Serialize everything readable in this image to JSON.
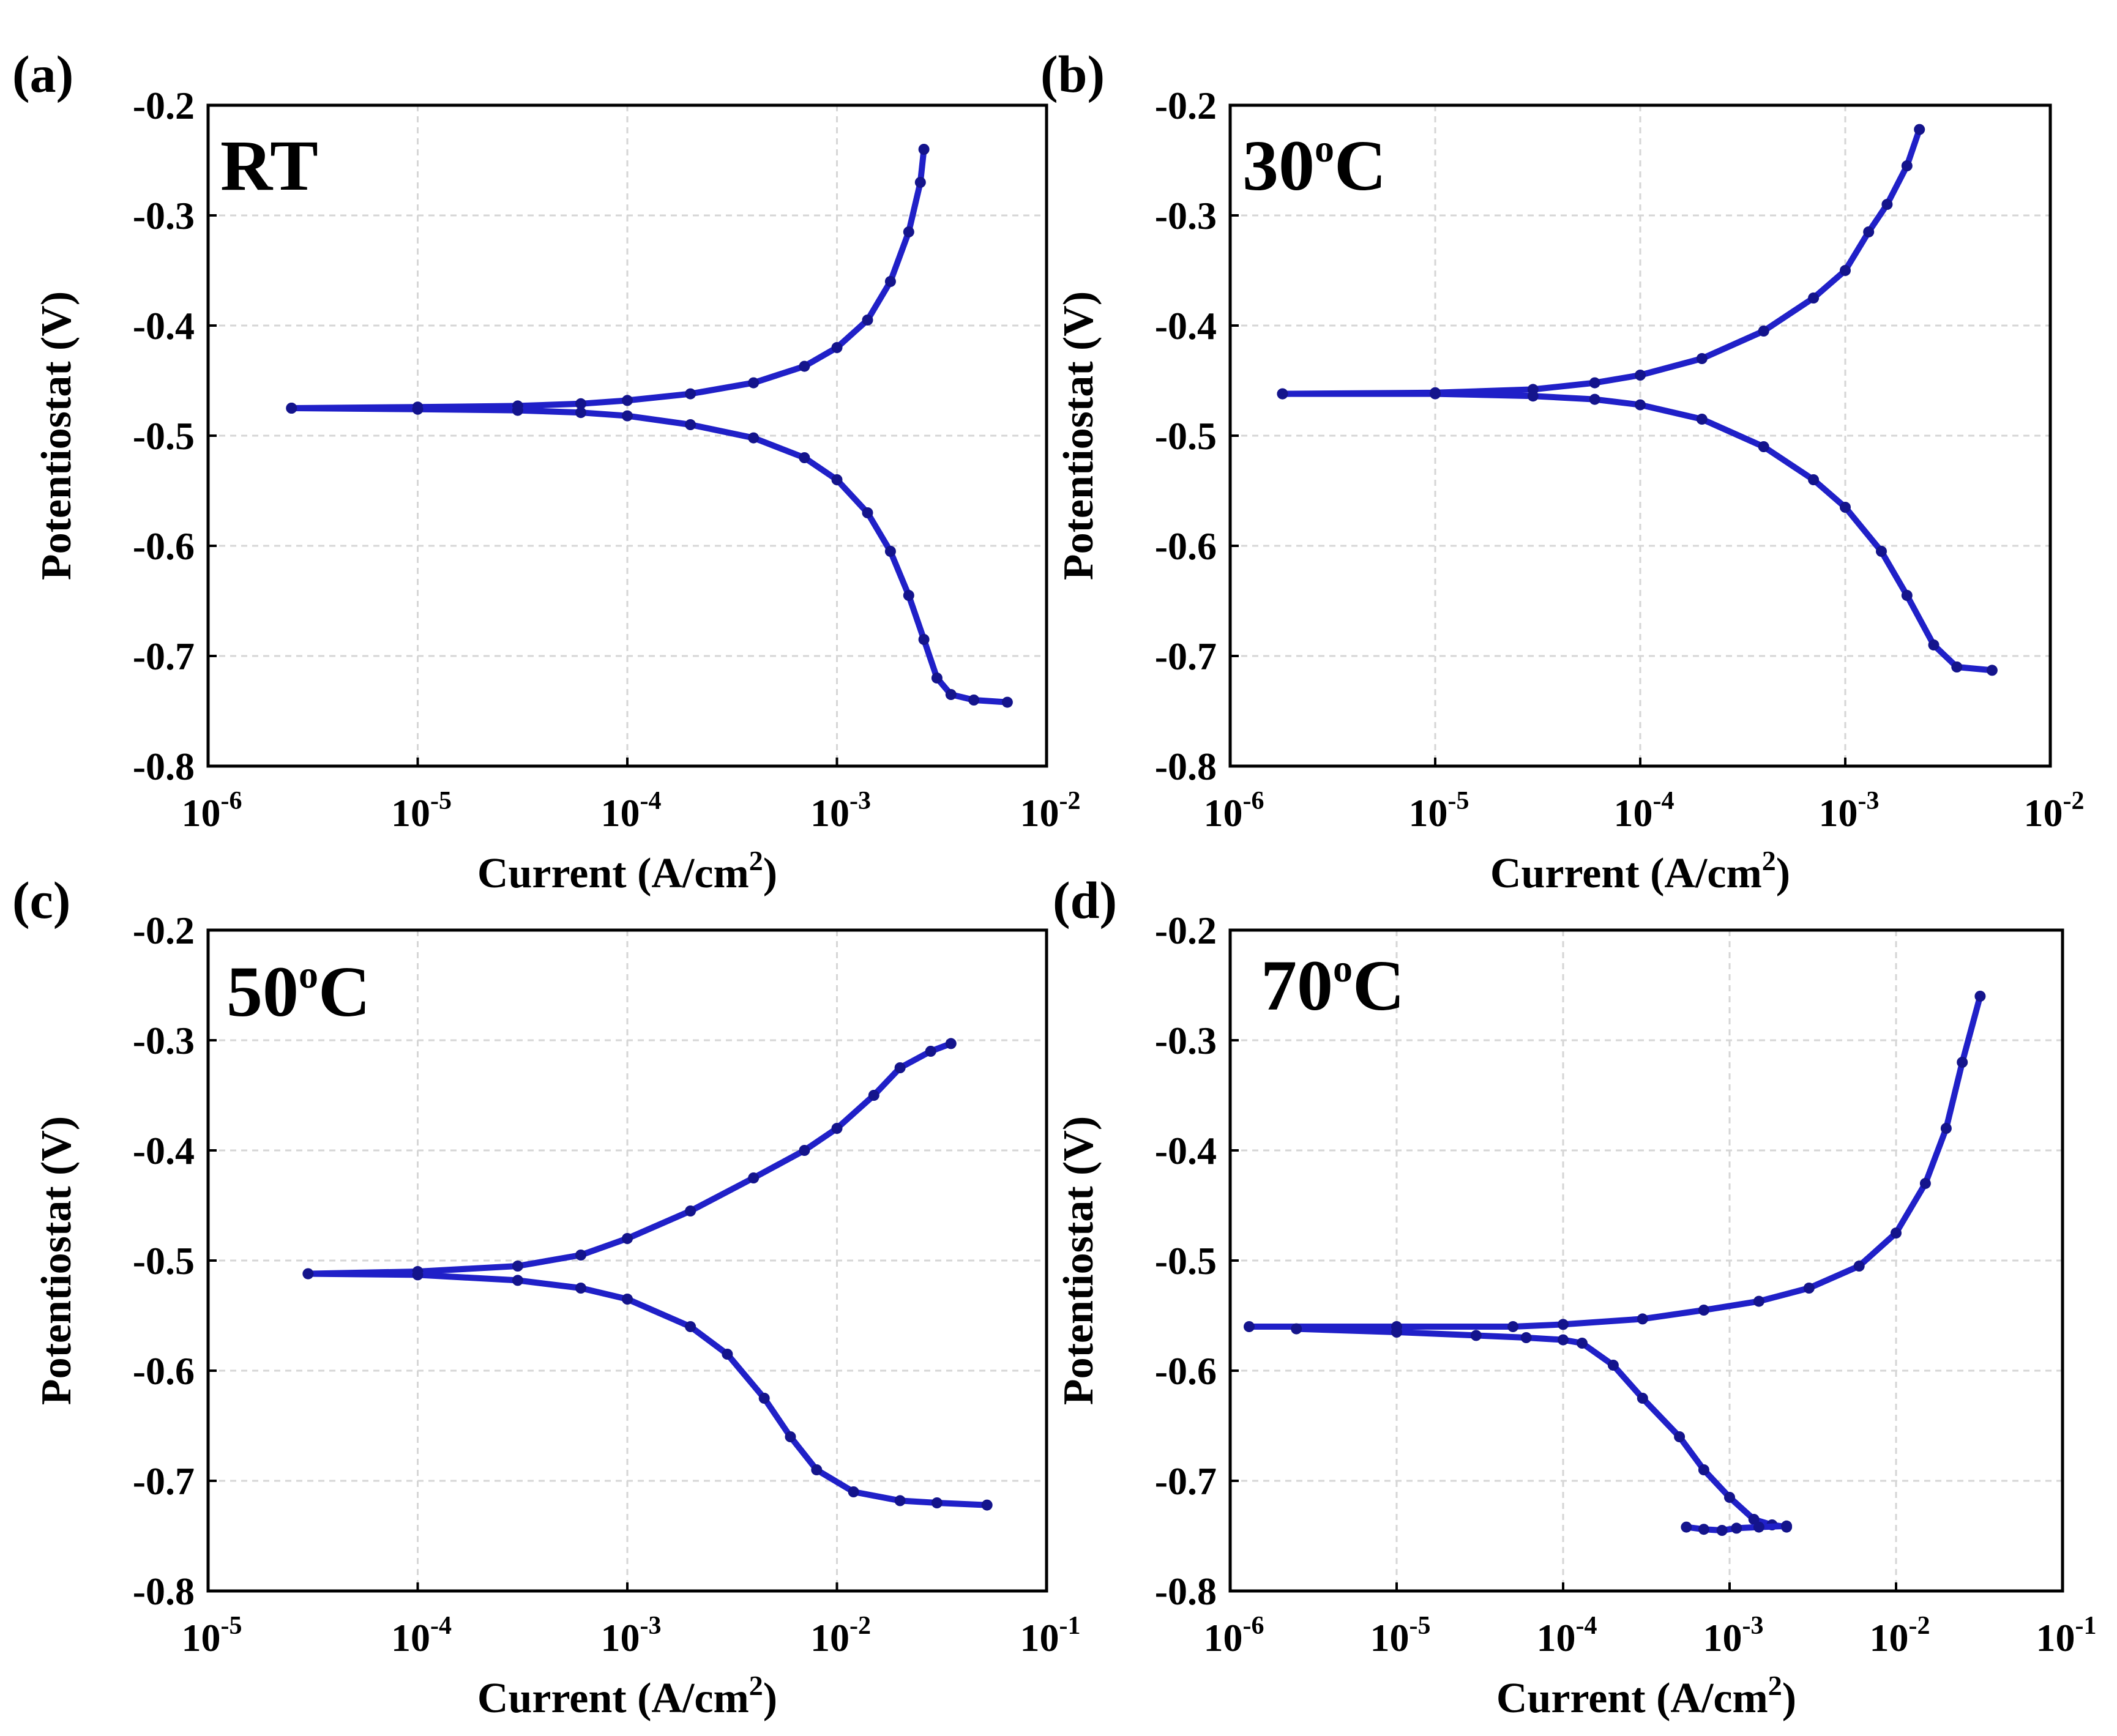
{
  "chart_data": [
    {
      "panel": "(a)",
      "label": "RT",
      "type": "line",
      "xscale": "log",
      "xlim": [
        1e-06,
        0.01
      ],
      "ylim": [
        -0.8,
        -0.2
      ],
      "xlabel": "Current (A/cm2)",
      "ylabel": "Potentiostat (V)",
      "xticks": [
        {
          "value": 1e-06,
          "base": "10",
          "exp": "-6"
        },
        {
          "value": 1e-05,
          "base": "10",
          "exp": "-5"
        },
        {
          "value": 0.0001,
          "base": "10",
          "exp": "-4"
        },
        {
          "value": 0.001,
          "base": "10",
          "exp": "-3"
        },
        {
          "value": 0.01,
          "base": "10",
          "exp": "-2"
        }
      ],
      "yticks": [
        {
          "value": -0.2,
          "label": "-0.2"
        },
        {
          "value": -0.3,
          "label": "-0.3"
        },
        {
          "value": -0.4,
          "label": "-0.4"
        },
        {
          "value": -0.5,
          "label": "-0.5"
        },
        {
          "value": -0.6,
          "label": "-0.6"
        },
        {
          "value": -0.7,
          "label": "-0.7"
        },
        {
          "value": -0.8,
          "label": "-0.8"
        }
      ],
      "grid": true,
      "series": [
        {
          "x": [
            2.5e-06,
            1e-05,
            3e-05,
            6e-05,
            0.0001,
            0.0002,
            0.0004,
            0.0007,
            0.001,
            0.0014,
            0.0018,
            0.0022,
            0.0025,
            0.0026
          ],
          "y": [
            -0.475,
            -0.474,
            -0.473,
            -0.471,
            -0.468,
            -0.462,
            -0.452,
            -0.437,
            -0.42,
            -0.395,
            -0.36,
            -0.315,
            -0.27,
            -0.24
          ]
        },
        {
          "x": [
            2.5e-06,
            1e-05,
            3e-05,
            6e-05,
            0.0001,
            0.0002,
            0.0004,
            0.0007,
            0.001,
            0.0014,
            0.0018,
            0.0022,
            0.0026,
            0.003,
            0.0035,
            0.0045,
            0.0065
          ],
          "y": [
            -0.475,
            -0.476,
            -0.477,
            -0.479,
            -0.482,
            -0.49,
            -0.502,
            -0.52,
            -0.54,
            -0.57,
            -0.605,
            -0.645,
            -0.685,
            -0.72,
            -0.735,
            -0.74,
            -0.742
          ]
        }
      ]
    },
    {
      "panel": "(b)",
      "label_main": "30",
      "label_sup": "o",
      "label_end": "C",
      "type": "line",
      "xscale": "log",
      "xlim": [
        1e-06,
        0.01
      ],
      "ylim": [
        -0.8,
        -0.2
      ],
      "xlabel": "Current (A/cm2)",
      "ylabel": "Potentiostat (V)",
      "xticks": [
        {
          "value": 1e-06,
          "base": "10",
          "exp": "-6"
        },
        {
          "value": 1e-05,
          "base": "10",
          "exp": "-5"
        },
        {
          "value": 0.0001,
          "base": "10",
          "exp": "-4"
        },
        {
          "value": 0.001,
          "base": "10",
          "exp": "-3"
        },
        {
          "value": 0.01,
          "base": "10",
          "exp": "-2"
        }
      ],
      "yticks": [
        {
          "value": -0.2,
          "label": "-0.2"
        },
        {
          "value": -0.3,
          "label": "-0.3"
        },
        {
          "value": -0.4,
          "label": "-0.4"
        },
        {
          "value": -0.5,
          "label": "-0.5"
        },
        {
          "value": -0.6,
          "label": "-0.6"
        },
        {
          "value": -0.7,
          "label": "-0.7"
        },
        {
          "value": -0.8,
          "label": "-0.8"
        }
      ],
      "grid": true,
      "series": [
        {
          "x": [
            1.8e-06,
            1e-05,
            3e-05,
            6e-05,
            0.0001,
            0.0002,
            0.0004,
            0.0007,
            0.001,
            0.0013,
            0.0016,
            0.002,
            0.0023
          ],
          "y": [
            -0.462,
            -0.461,
            -0.458,
            -0.452,
            -0.445,
            -0.43,
            -0.405,
            -0.375,
            -0.35,
            -0.315,
            -0.29,
            -0.255,
            -0.222
          ]
        },
        {
          "x": [
            1.8e-06,
            1e-05,
            3e-05,
            6e-05,
            0.0001,
            0.0002,
            0.0004,
            0.0007,
            0.001,
            0.0015,
            0.002,
            0.0027,
            0.0035,
            0.0052
          ],
          "y": [
            -0.462,
            -0.462,
            -0.464,
            -0.467,
            -0.472,
            -0.485,
            -0.51,
            -0.54,
            -0.565,
            -0.605,
            -0.645,
            -0.69,
            -0.71,
            -0.713
          ]
        }
      ]
    },
    {
      "panel": "(c)",
      "label_main": "50",
      "label_sup": "o",
      "label_end": "C",
      "type": "line",
      "xscale": "log",
      "xlim": [
        1e-05,
        0.1
      ],
      "ylim": [
        -0.8,
        -0.2
      ],
      "xlabel": "Current (A/cm2)",
      "ylabel": "Potentiostat (V)",
      "xticks": [
        {
          "value": 1e-05,
          "base": "10",
          "exp": "-5"
        },
        {
          "value": 0.0001,
          "base": "10",
          "exp": "-4"
        },
        {
          "value": 0.001,
          "base": "10",
          "exp": "-3"
        },
        {
          "value": 0.01,
          "base": "10",
          "exp": "-2"
        },
        {
          "value": 0.1,
          "base": "10",
          "exp": "-1"
        }
      ],
      "yticks": [
        {
          "value": -0.2,
          "label": "-0.2"
        },
        {
          "value": -0.3,
          "label": "-0.3"
        },
        {
          "value": -0.4,
          "label": "-0.4"
        },
        {
          "value": -0.5,
          "label": "-0.5"
        },
        {
          "value": -0.6,
          "label": "-0.6"
        },
        {
          "value": -0.7,
          "label": "-0.7"
        },
        {
          "value": -0.8,
          "label": "-0.8"
        }
      ],
      "grid": true,
      "series": [
        {
          "x": [
            3e-05,
            0.0001,
            0.0003,
            0.0006,
            0.001,
            0.002,
            0.004,
            0.007,
            0.01,
            0.015,
            0.02,
            0.028,
            0.035
          ],
          "y": [
            -0.512,
            -0.51,
            -0.505,
            -0.495,
            -0.48,
            -0.455,
            -0.425,
            -0.4,
            -0.38,
            -0.35,
            -0.325,
            -0.31,
            -0.303
          ]
        },
        {
          "x": [
            3e-05,
            0.0001,
            0.0003,
            0.0006,
            0.001,
            0.002,
            0.003,
            0.0045,
            0.006,
            0.008,
            0.012,
            0.02,
            0.03,
            0.052
          ],
          "y": [
            -0.512,
            -0.513,
            -0.518,
            -0.525,
            -0.535,
            -0.56,
            -0.585,
            -0.625,
            -0.66,
            -0.69,
            -0.71,
            -0.718,
            -0.72,
            -0.722
          ]
        }
      ]
    },
    {
      "panel": "(d)",
      "label_main": "70",
      "label_sup": "o",
      "label_end": "C",
      "type": "line",
      "xscale": "log",
      "xlim": [
        1e-06,
        0.1
      ],
      "ylim": [
        -0.8,
        -0.2
      ],
      "xlabel": "Current (A/cm2)",
      "ylabel": "Potentiostat (V)",
      "xticks": [
        {
          "value": 1e-06,
          "base": "10",
          "exp": "-6"
        },
        {
          "value": 1e-05,
          "base": "10",
          "exp": "-5"
        },
        {
          "value": 0.0001,
          "base": "10",
          "exp": "-4"
        },
        {
          "value": 0.001,
          "base": "10",
          "exp": "-3"
        },
        {
          "value": 0.01,
          "base": "10",
          "exp": "-2"
        },
        {
          "value": 0.1,
          "base": "10",
          "exp": "-1"
        }
      ],
      "yticks": [
        {
          "value": -0.2,
          "label": "-0.2"
        },
        {
          "value": -0.3,
          "label": "-0.3"
        },
        {
          "value": -0.4,
          "label": "-0.4"
        },
        {
          "value": -0.5,
          "label": "-0.5"
        },
        {
          "value": -0.6,
          "label": "-0.6"
        },
        {
          "value": -0.7,
          "label": "-0.7"
        },
        {
          "value": -0.8,
          "label": "-0.8"
        }
      ],
      "grid": true,
      "series": [
        {
          "x": [
            1.3e-06,
            1e-05,
            5e-05,
            0.0001,
            0.0003,
            0.0007,
            0.0015,
            0.003,
            0.006,
            0.01,
            0.015,
            0.02,
            0.025,
            0.032
          ],
          "y": [
            -0.56,
            -0.56,
            -0.56,
            -0.558,
            -0.553,
            -0.545,
            -0.537,
            -0.525,
            -0.505,
            -0.475,
            -0.43,
            -0.38,
            -0.32,
            -0.26
          ]
        },
        {
          "x": [
            2.5e-06,
            1e-05,
            3e-05,
            6e-05,
            0.0001,
            0.00013,
            0.0002,
            0.0003,
            0.0005,
            0.0007,
            0.001,
            0.0014,
            0.0018,
            0.0022
          ],
          "y": [
            -0.562,
            -0.565,
            -0.568,
            -0.57,
            -0.572,
            -0.575,
            -0.595,
            -0.625,
            -0.66,
            -0.69,
            -0.715,
            -0.735,
            -0.74,
            -0.742
          ]
        },
        {
          "x": [
            0.00055,
            0.0007,
            0.0009,
            0.0011,
            0.0015,
            0.0022
          ],
          "y": [
            -0.742,
            -0.744,
            -0.745,
            -0.743,
            -0.742,
            -0.741
          ]
        }
      ]
    }
  ]
}
